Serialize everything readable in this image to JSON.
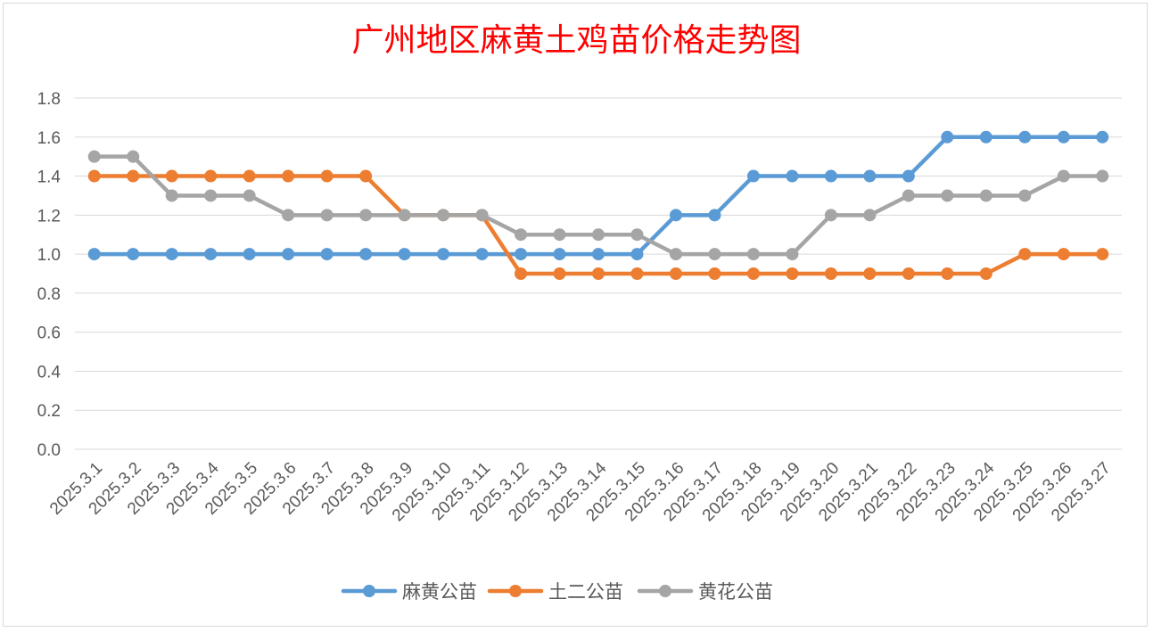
{
  "chart_data": {
    "type": "line",
    "title": "广州地区麻黄土鸡苗价格走势图",
    "categories": [
      "2025.3.1",
      "2025.3.2",
      "2025.3.3",
      "2025.3.4",
      "2025.3.5",
      "2025.3.6",
      "2025.3.7",
      "2025.3.8",
      "2025.3.9",
      "2025.3.10",
      "2025.3.11",
      "2025.3.12",
      "2025.3.13",
      "2025.3.14",
      "2025.3.15",
      "2025.3.16",
      "2025.3.17",
      "2025.3.18",
      "2025.3.19",
      "2025.3.20",
      "2025.3.21",
      "2025.3.22",
      "2025.3.23",
      "2025.3.24",
      "2025.3.25",
      "2025.3.26",
      "2025.3.27"
    ],
    "series": [
      {
        "name": "麻黄公苗",
        "color": "#5b9bd5",
        "values": [
          1.0,
          1.0,
          1.0,
          1.0,
          1.0,
          1.0,
          1.0,
          1.0,
          1.0,
          1.0,
          1.0,
          1.0,
          1.0,
          1.0,
          1.0,
          1.2,
          1.2,
          1.4,
          1.4,
          1.4,
          1.4,
          1.4,
          1.6,
          1.6,
          1.6,
          1.6,
          1.6
        ]
      },
      {
        "name": "土二公苗",
        "color": "#ed7d31",
        "values": [
          1.4,
          1.4,
          1.4,
          1.4,
          1.4,
          1.4,
          1.4,
          1.4,
          1.2,
          1.2,
          1.2,
          0.9,
          0.9,
          0.9,
          0.9,
          0.9,
          0.9,
          0.9,
          0.9,
          0.9,
          0.9,
          0.9,
          0.9,
          0.9,
          1.0,
          1.0,
          1.0
        ]
      },
      {
        "name": "黄花公苗",
        "color": "#a5a5a5",
        "values": [
          1.5,
          1.5,
          1.3,
          1.3,
          1.3,
          1.2,
          1.2,
          1.2,
          1.2,
          1.2,
          1.2,
          1.1,
          1.1,
          1.1,
          1.1,
          1.0,
          1.0,
          1.0,
          1.0,
          1.2,
          1.2,
          1.3,
          1.3,
          1.3,
          1.3,
          1.4,
          1.4
        ]
      }
    ],
    "ylim": [
      0,
      1.8
    ],
    "yticks": [
      "0.0",
      "0.2",
      "0.4",
      "0.6",
      "0.8",
      "1.0",
      "1.2",
      "1.4",
      "1.6",
      "1.8"
    ],
    "grid": true,
    "legend_position": "bottom"
  }
}
